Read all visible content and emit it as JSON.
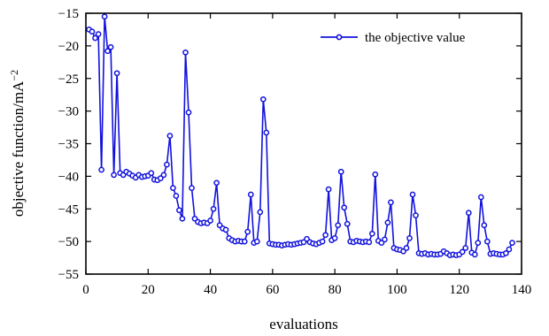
{
  "chart_data": {
    "type": "line",
    "title": "",
    "xlabel": "evaluations",
    "ylabel_main": "objective function/mA",
    "ylabel_sup": "−2",
    "xlim": [
      0,
      140
    ],
    "ylim": [
      -55,
      -15
    ],
    "xticks": [
      0,
      20,
      40,
      60,
      80,
      100,
      120,
      140
    ],
    "yticks": [
      -15,
      -20,
      -25,
      -30,
      -35,
      -40,
      -45,
      -50,
      -55
    ],
    "ytick_labels": [
      "−15",
      "−20",
      "−25",
      "−30",
      "−35",
      "−40",
      "−45",
      "−50",
      "−55"
    ],
    "grid": false,
    "legend_position": "top-right",
    "series": [
      {
        "name": "the objective value",
        "color": "#1212dd",
        "marker": "circle",
        "x": [
          1,
          2,
          3,
          4,
          5,
          6,
          7,
          8,
          9,
          10,
          11,
          12,
          13,
          14,
          15,
          16,
          17,
          18,
          19,
          20,
          21,
          22,
          23,
          24,
          25,
          26,
          27,
          28,
          29,
          30,
          31,
          32,
          33,
          34,
          35,
          36,
          37,
          38,
          39,
          40,
          41,
          42,
          43,
          44,
          45,
          46,
          47,
          48,
          49,
          50,
          51,
          52,
          53,
          54,
          55,
          56,
          57,
          58,
          59,
          60,
          61,
          62,
          63,
          64,
          65,
          66,
          67,
          68,
          69,
          70,
          71,
          72,
          73,
          74,
          75,
          76,
          77,
          78,
          79,
          80,
          81,
          82,
          83,
          84,
          85,
          86,
          87,
          88,
          89,
          90,
          91,
          92,
          93,
          94,
          95,
          96,
          97,
          98,
          99,
          100,
          101,
          102,
          103,
          104,
          105,
          106,
          107,
          108,
          109,
          110,
          111,
          112,
          113,
          114,
          115,
          116,
          117,
          118,
          119,
          120,
          121,
          122,
          123,
          124,
          125,
          126,
          127,
          128,
          129,
          130,
          131,
          132,
          133,
          134,
          135,
          136,
          137
        ],
        "y": [
          -17.5,
          -17.8,
          -18.8,
          -18.2,
          -39,
          -15.5,
          -20.8,
          -20.2,
          -39.8,
          -24.2,
          -39.5,
          -39.8,
          -39.3,
          -39.6,
          -39.9,
          -40.2,
          -39.8,
          -40.1,
          -40,
          -39.9,
          -39.5,
          -40.5,
          -40.6,
          -40.3,
          -39.8,
          -38.2,
          -33.8,
          -41.8,
          -43,
          -45.2,
          -46.5,
          -21,
          -30.2,
          -41.8,
          -46.5,
          -47,
          -47.2,
          -47.1,
          -47.2,
          -46.8,
          -45,
          -41,
          -47.5,
          -48,
          -48.2,
          -49.5,
          -49.8,
          -50,
          -49.9,
          -50,
          -50,
          -48.5,
          -42.8,
          -50.2,
          -50,
          -45.5,
          -28.2,
          -33.3,
          -50.3,
          -50.4,
          -50.5,
          -50.5,
          -50.6,
          -50.5,
          -50.4,
          -50.5,
          -50.4,
          -50.3,
          -50.2,
          -50.1,
          -49.6,
          -50.1,
          -50.3,
          -50.4,
          -50.2,
          -50,
          -49,
          -42,
          -49.8,
          -49.5,
          -47.5,
          -39.3,
          -44.8,
          -47.3,
          -50,
          -50.1,
          -49.9,
          -50,
          -50.1,
          -50,
          -50.1,
          -48.8,
          -39.7,
          -49.9,
          -50.2,
          -49.7,
          -47.1,
          -44,
          -51,
          -51.2,
          -51.3,
          -51.5,
          -51,
          -49.5,
          -42.8,
          -46,
          -51.8,
          -51.9,
          -51.8,
          -52,
          -51.9,
          -52,
          -52,
          -51.9,
          -51.5,
          -51.8,
          -52.1,
          -52,
          -52.1,
          -52,
          -51.6,
          -51,
          -45.6,
          -51.7,
          -52,
          -50.2,
          -43.2,
          -47.5,
          -50,
          -51.9,
          -51.8,
          -51.9,
          -52,
          -52,
          -51.8,
          -51.2,
          -50.2
        ]
      }
    ]
  }
}
